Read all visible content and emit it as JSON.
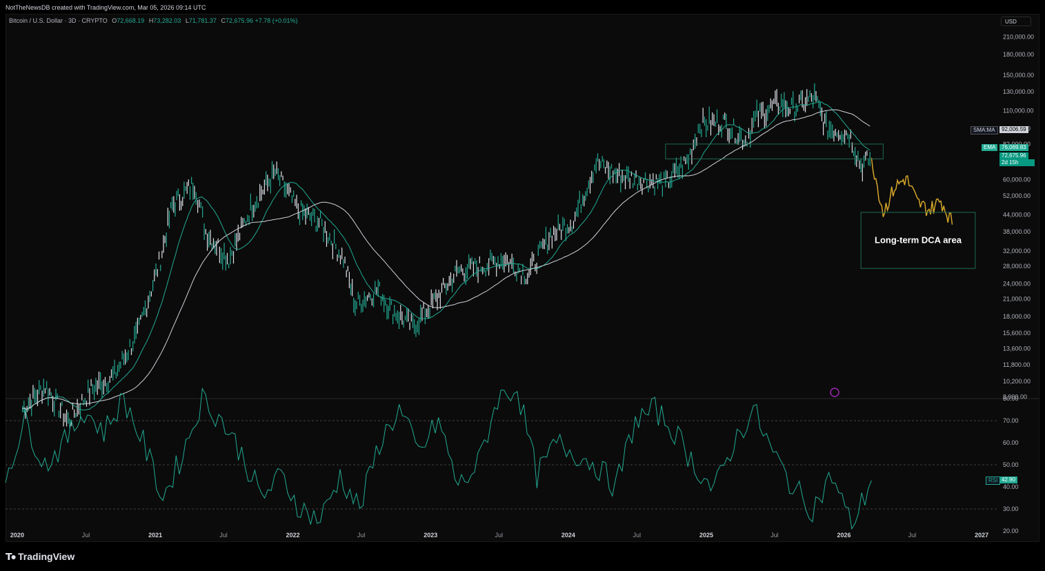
{
  "attribution": "NotTheNewsDB created with TradingView.com, Mar 05, 2026 09:14 UTC",
  "legend": {
    "symbol": "Bitcoin / U.S. Dollar · 3D · CRYPTO",
    "o_label": "O",
    "o_value": "72,668.19",
    "h_label": "H",
    "h_value": "73,282.03",
    "l_label": "L",
    "l_value": "71,781.37",
    "c_label": "C",
    "c_value": "72,675.96",
    "change": "+7.78 (+0.01%)"
  },
  "currency_button": "USD",
  "brand": "TradingView",
  "annotation": "Long-term DCA area",
  "colors": {
    "up": "#22ab94",
    "projection": "#d4a52a",
    "sma": "#d1d4dc",
    "ema": "#22ab94",
    "rsi": "#22ab94",
    "box": "#1f6b55"
  },
  "price_tags": {
    "sma_label": "SMA:MA",
    "sma_value": "92,006.59",
    "ema_label": "EMA",
    "ema_value": "76,069.83",
    "last_value": "72,675.96",
    "countdown": "2d 15h",
    "rsi_label": "RSI",
    "rsi_value": "42.90"
  },
  "chart_data": [
    {
      "type": "line",
      "title": "Bitcoin / U.S. Dollar · 3D · CRYPTO",
      "scale": "log",
      "yticks": [
        "210,000.00",
        "180,000.00",
        "150,000.00",
        "130,000.00",
        "110,000.00",
        "94,000.00",
        "82,000.00",
        "70,000.00",
        "60,000.00",
        "52,000.00",
        "44,000.00",
        "38,000.00",
        "32,000.00",
        "28,000.00",
        "24,000.00",
        "21,000.00",
        "18,000.00",
        "15,600.00",
        "13,600.00",
        "11,800.00",
        "10,200.00",
        "8,900.00"
      ],
      "xticks": [
        "2020",
        "Jul",
        "2021",
        "Jul",
        "2022",
        "Jul",
        "2023",
        "Jul",
        "2024",
        "Jul",
        "2025",
        "Jul",
        "2026",
        "Jul",
        "2027"
      ],
      "series": [
        {
          "name": "BTC",
          "x": [
            "2020-01",
            "2020-03",
            "2020-05",
            "2020-07",
            "2020-09",
            "2020-11",
            "2021-01",
            "2021-02",
            "2021-04",
            "2021-05",
            "2021-07",
            "2021-09",
            "2021-11",
            "2022-01",
            "2022-03",
            "2022-05",
            "2022-06",
            "2022-08",
            "2022-09",
            "2022-11",
            "2023-01",
            "2023-03",
            "2023-05",
            "2023-07",
            "2023-09",
            "2023-11",
            "2024-01",
            "2024-03",
            "2024-05",
            "2024-07",
            "2024-09",
            "2024-11",
            "2024-12",
            "2025-02",
            "2025-04",
            "2025-05",
            "2025-07",
            "2025-08",
            "2025-10",
            "2025-11",
            "2026-01",
            "2026-02",
            "2026-03"
          ],
          "values": [
            8000,
            9800,
            7200,
            9500,
            10800,
            15500,
            30000,
            48000,
            58000,
            38000,
            30000,
            48000,
            64000,
            46000,
            41000,
            30000,
            20000,
            23000,
            19500,
            16500,
            21000,
            27000,
            28000,
            30000,
            26000,
            37000,
            42000,
            70000,
            62000,
            60000,
            58000,
            72000,
            98000,
            100000,
            85000,
            105000,
            118000,
            112000,
            124000,
            95000,
            90000,
            68000,
            72676
          ]
        },
        {
          "name": "Projection",
          "x": [
            "2026-03",
            "2026-04",
            "2026-05",
            "2026-06",
            "2026-07",
            "2026-08",
            "2026-09",
            "2026-10"
          ],
          "values": [
            72676,
            45000,
            56000,
            61000,
            49000,
            46000,
            50000,
            41000
          ]
        }
      ],
      "indicators": {
        "sma_last": 92006.59,
        "ema_last": 76069.83
      },
      "annotations": [
        "Long-term DCA area"
      ]
    },
    {
      "type": "line",
      "title": "RSI",
      "yticks": [
        "80.00",
        "70.00",
        "60.00",
        "50.00",
        "40.00",
        "30.00",
        "20.00"
      ],
      "ylim": [
        20,
        80
      ],
      "levels": [
        70,
        50,
        30
      ],
      "series": [
        {
          "name": "RSI",
          "values": [
            45,
            70,
            50,
            60,
            75,
            65,
            80,
            60,
            35,
            55,
            80,
            70,
            55,
            35,
            45,
            30,
            25,
            45,
            30,
            60,
            75,
            55,
            70,
            40,
            50,
            80,
            85,
            45,
            60,
            55,
            50,
            40,
            70,
            75,
            65,
            50,
            38,
            60,
            75,
            55,
            40,
            30,
            45,
            22,
            42.9
          ]
        }
      ]
    }
  ]
}
